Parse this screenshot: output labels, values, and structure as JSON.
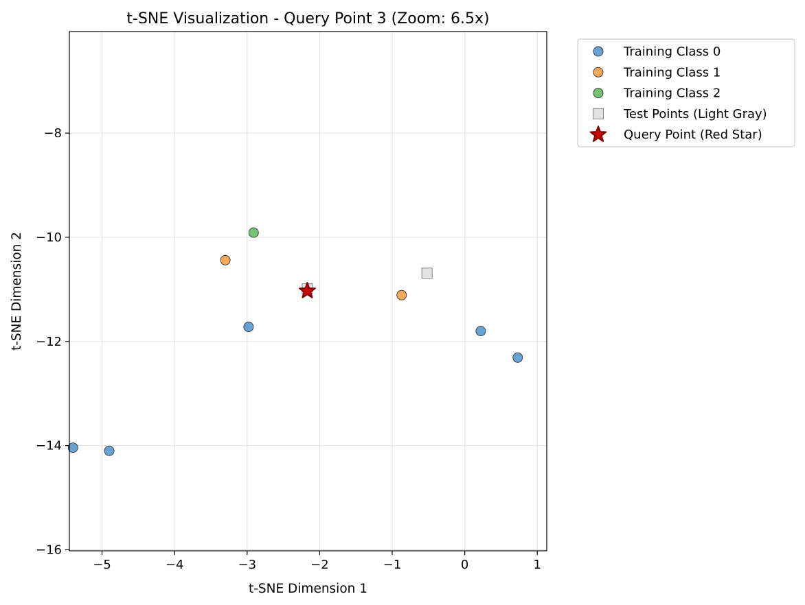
{
  "chart_data": {
    "type": "scatter",
    "title": "t-SNE Visualization - Query Point 3 (Zoom: 6.5x)",
    "xlabel": "t-SNE Dimension 1",
    "ylabel": "t-SNE Dimension 2",
    "xlim": [
      -5.45,
      1.13
    ],
    "ylim": [
      -16.02,
      -6.05
    ],
    "xticks": [
      -5,
      -4,
      -3,
      -2,
      -1,
      0,
      1
    ],
    "yticks": [
      -16,
      -14,
      -12,
      -10,
      -8
    ],
    "xtick_labels": [
      "−5",
      "−4",
      "−3",
      "−2",
      "−1",
      "0",
      "1"
    ],
    "ytick_labels": [
      "−16",
      "−14",
      "−12",
      "−10",
      "−8"
    ],
    "grid": true,
    "legend_position": "outside-top-right",
    "series": [
      {
        "name": "Training Class 0",
        "marker": "circle",
        "color": "#5b9bd0",
        "points": [
          {
            "x": -5.4,
            "y": -14.04
          },
          {
            "x": -4.9,
            "y": -14.1
          },
          {
            "x": -2.98,
            "y": -11.72
          },
          {
            "x": 0.22,
            "y": -11.8
          },
          {
            "x": 0.73,
            "y": -12.31
          }
        ]
      },
      {
        "name": "Training Class 1",
        "marker": "circle",
        "color": "#f9a04c",
        "points": [
          {
            "x": -3.3,
            "y": -10.44
          },
          {
            "x": -0.87,
            "y": -11.11
          }
        ]
      },
      {
        "name": "Training Class 2",
        "marker": "circle",
        "color": "#68bf68",
        "points": [
          {
            "x": -2.91,
            "y": -9.91
          }
        ]
      },
      {
        "name": "Test Points (Light Gray)",
        "marker": "square",
        "color": "#e3e3e3",
        "points": [
          {
            "x": -0.52,
            "y": -10.69
          },
          {
            "x": -2.17,
            "y": -10.99
          }
        ]
      },
      {
        "name": "Query Point (Red Star)",
        "marker": "star",
        "color": "#cc0000",
        "points": [
          {
            "x": -2.17,
            "y": -11.03
          }
        ]
      }
    ]
  }
}
